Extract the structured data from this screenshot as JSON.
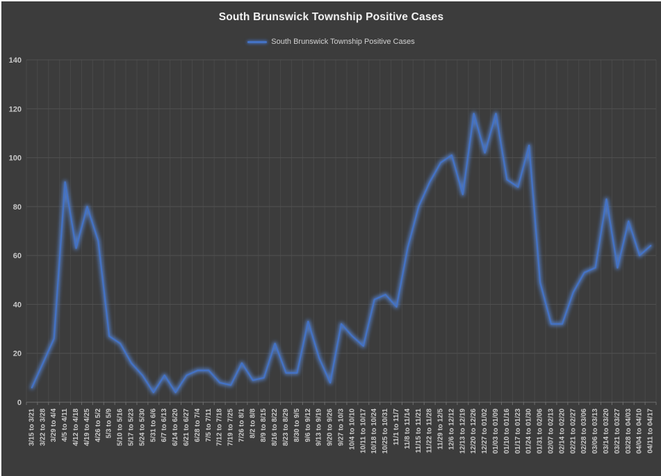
{
  "colors": {
    "background": "#3c3c3c",
    "page_edge": "#fbfbfb",
    "line": "#4472c4",
    "line_glow": "#5585d6",
    "grid_vertical": "#494949",
    "grid_horizontal": "#515151",
    "axis_line": "#6e6e6e",
    "tick_mark": "#6e6e6e",
    "axis_text": "#c9c9c9",
    "title_text": "#f2f2f2",
    "legend_text": "#d2d2d2"
  },
  "chart_data": {
    "type": "line",
    "title": "South Brunswick Township Positive Cases",
    "xlabel": "",
    "ylabel": "",
    "ylim": [
      0,
      140
    ],
    "yticks": [
      0,
      20,
      40,
      60,
      80,
      100,
      120,
      140
    ],
    "grid": true,
    "legend_position": "top",
    "categories": [
      "3/15 to 3/21",
      "3/22 to 3/28",
      "3/29 to 4/4",
      "4/5 to 4/11",
      "4/12 to 4/18",
      "4/19 to 4/25",
      "4/26 to 5/2",
      "5/3 to 5/9",
      "5/10 to 5/16",
      "5/17 to 5/23",
      "5/24 to 5/30",
      "5/31 to 6/6",
      "6/7 to 6/13",
      "6/14 to 6/20",
      "6/21 to 6/27",
      "6/28 to 7/4",
      "7/5 to 7/11",
      "7/12 to 7/18",
      "7/19 to 7/25",
      "7/26 to 8/1",
      "8/2 to 8/8",
      "8/9 to 8/15",
      "8/16 to 8/22",
      "8/23 to 8/29",
      "8/30 to 9/5",
      "9/6 to 9/12",
      "9/13 to 9/19",
      "9/20 to 9/26",
      "9/27 to 10/3",
      "10/4 to 10/10",
      "10/11 to 10/17",
      "10/18 to 10/24",
      "10/25 to 10/31",
      "11/1 to 11/7",
      "11/8 to 11/14",
      "11/15 to 11/21",
      "11/22 to 11/28",
      "11/29 to 12/5",
      "12/6 to 12/12",
      "12/13 to 12/19",
      "12/20 to 12/26",
      "12/27 to 01/02",
      "01/03 to 01/09",
      "01/10 to 01/16",
      "01/17 to 01/23",
      "01/24 to 01/30",
      "01/31 to 02/06",
      "02/07 to 02/13",
      "02/14 to 02/20",
      "02/21 to 02/27",
      "02/28 to 03/06",
      "03/06 to 03/13",
      "03/14 to 03/20",
      "03/21 to 03/27",
      "03/28 to 04/03",
      "04/04 to 04/10",
      "04/11 to 04/17"
    ],
    "series": [
      {
        "name": "South Brunswick Township Positive Cases",
        "values": [
          6,
          16,
          26,
          90,
          63,
          80,
          66,
          27,
          24,
          16,
          11,
          4,
          11,
          4,
          11,
          13,
          13,
          8,
          7,
          16,
          9,
          10,
          24,
          12,
          12,
          33,
          18,
          8,
          32,
          27,
          23,
          42,
          44,
          39,
          63,
          80,
          90,
          98,
          101,
          85,
          118,
          102,
          118,
          91,
          88,
          105,
          49,
          32,
          32,
          45,
          53,
          55,
          83,
          55,
          74,
          60,
          64
        ]
      }
    ]
  }
}
